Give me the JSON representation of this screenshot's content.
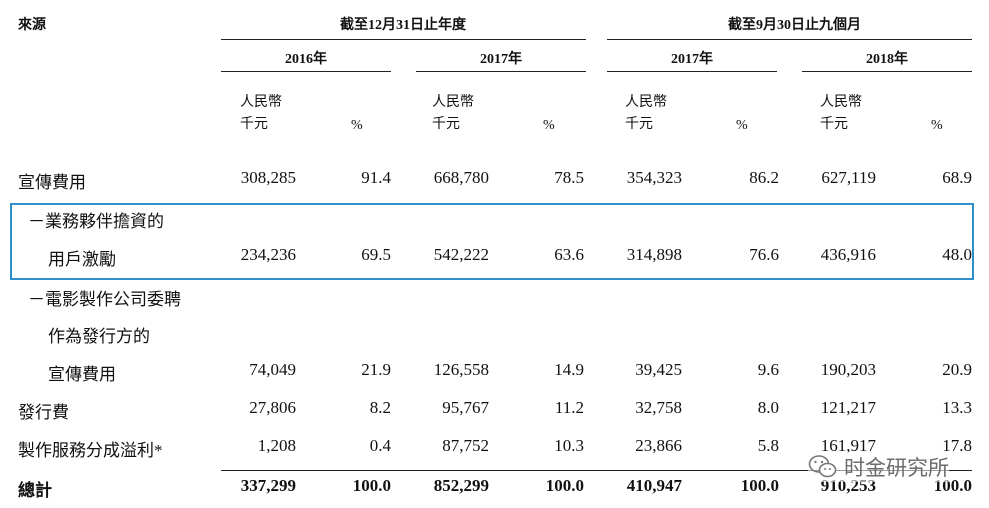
{
  "header": {
    "source_label": "來源",
    "group_year": "截至12月31日止年度",
    "group_nine": "截至9月30日止九個月",
    "years": [
      "2016年",
      "2017年",
      "2017年",
      "2018年"
    ],
    "unit_line1": "人民幣",
    "unit_line2": "千元",
    "pct": "%"
  },
  "rows": [
    {
      "label": "宣傳費用",
      "values": [
        "308,285",
        "91.4",
        "668,780",
        "78.5",
        "354,323",
        "86.2",
        "627,119",
        "68.9"
      ]
    },
    {
      "label": "－業務夥伴擔資的",
      "values": []
    },
    {
      "label": "用戶激勵",
      "values": [
        "234,236",
        "69.5",
        "542,222",
        "63.6",
        "314,898",
        "76.6",
        "436,916",
        "48.0"
      ]
    },
    {
      "label": "－電影製作公司委聘",
      "values": []
    },
    {
      "label": "作為發行方的",
      "values": []
    },
    {
      "label": "宣傳費用",
      "values": [
        "74,049",
        "21.9",
        "126,558",
        "14.9",
        "39,425",
        "9.6",
        "190,203",
        "20.9"
      ]
    },
    {
      "label": "發行費",
      "values": [
        "27,806",
        "8.2",
        "95,767",
        "11.2",
        "32,758",
        "8.0",
        "121,217",
        "13.3"
      ]
    },
    {
      "label": "製作服務分成溢利*",
      "values": [
        "1,208",
        "0.4",
        "87,752",
        "10.3",
        "23,866",
        "5.8",
        "161,917",
        "17.8"
      ]
    },
    {
      "label": "總計",
      "values": [
        "337,299",
        "100.0",
        "852,299",
        "100.0",
        "410,947",
        "100.0",
        "910,253",
        "100.0"
      ]
    }
  ],
  "watermark": {
    "icon": "wechat-icon",
    "text": "时金研究所"
  },
  "colors": {
    "highlight_border": "#2f8fc9",
    "text": "#111111"
  }
}
